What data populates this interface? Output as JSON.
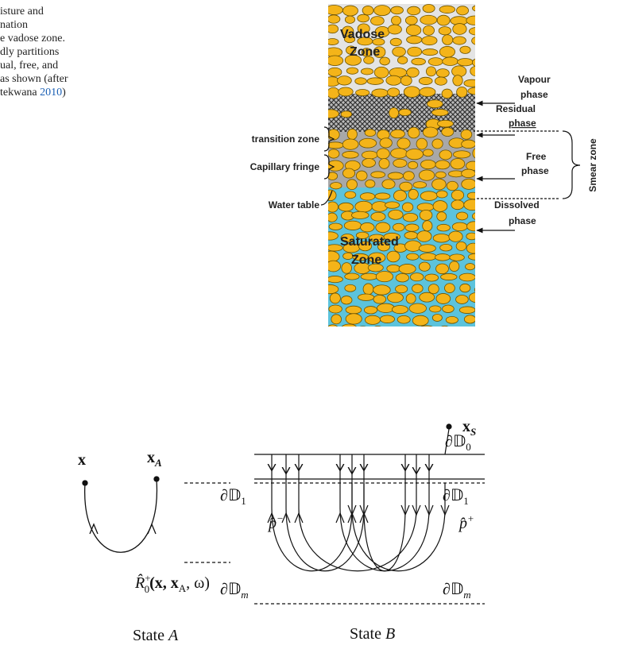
{
  "caption": {
    "lines": [
      "isture and",
      "nation",
      "e vadose zone.",
      "dly partitions",
      "ual, free, and",
      "as shown (after"
    ],
    "last_line": {
      "text": "tekwana ",
      "link": "2010",
      "tail": ")"
    }
  },
  "figure_top": {
    "vadose": [
      "Vadose",
      "Zone"
    ],
    "vapour": [
      "Vapour",
      "phase"
    ],
    "residual": [
      "Residual",
      "phase"
    ],
    "transition": "transition zone",
    "capillary": "Capillary fringe",
    "free": [
      "Free",
      "phase"
    ],
    "smear": "Smear zone",
    "water_table": "Water table",
    "dissolved": [
      "Dissolved",
      "phase"
    ],
    "saturated": [
      "Saturated",
      "Zone"
    ]
  },
  "figure_bottom": {
    "state_a": {
      "x": "x",
      "xa": {
        "main": "x",
        "sub": "A"
      },
      "d1": {
        "main": "∂𝔻",
        "sub": "1"
      },
      "r": {
        "main": "R̂",
        "sub": "0",
        "sup": "+",
        "args": "(x, x",
        "argsub": "A",
        "tail": ", ω)"
      },
      "dm": {
        "main": "∂𝔻",
        "sub": "m"
      },
      "caption": {
        "main": "State ",
        "italic": "A"
      }
    },
    "state_b": {
      "d0": {
        "main": "∂𝔻",
        "sub": "0"
      },
      "xs": {
        "main": "x",
        "sub": "S"
      },
      "d1": {
        "main": "∂𝔻",
        "sub": "1"
      },
      "pm": {
        "main": "p̂",
        "sup": "−"
      },
      "pp": {
        "main": "p̂",
        "sup": "+"
      },
      "dm": {
        "main": "∂𝔻",
        "sub": "m"
      },
      "caption": {
        "main": "State ",
        "italic": "B"
      }
    }
  }
}
